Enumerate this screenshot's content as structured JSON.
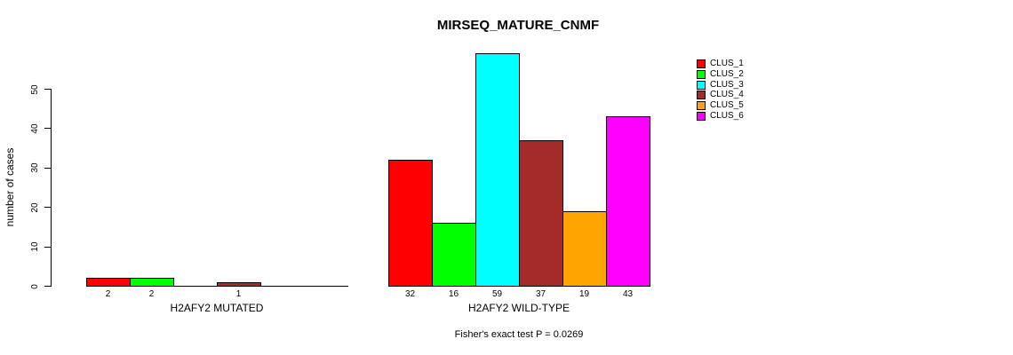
{
  "chart_data": {
    "type": "bar",
    "title": "MIRSEQ_MATURE_CNMF",
    "ylabel": "number of cases",
    "yticks": [
      0,
      10,
      20,
      30,
      40,
      50
    ],
    "ylim": [
      0,
      59
    ],
    "grid": false,
    "legend_position": "top-right",
    "clusters": [
      {
        "name": "CLUS_1",
        "color": "#FF0000"
      },
      {
        "name": "CLUS_2",
        "color": "#00FF00"
      },
      {
        "name": "CLUS_3",
        "color": "#00FFFF"
      },
      {
        "name": "CLUS_4",
        "color": "#A52A2A"
      },
      {
        "name": "CLUS_5",
        "color": "#FFA500"
      },
      {
        "name": "CLUS_6",
        "color": "#FF00FF"
      }
    ],
    "groups": [
      {
        "label": "H2AFY2 MUTATED",
        "values": [
          2,
          2,
          0,
          1,
          0,
          0
        ]
      },
      {
        "label": "H2AFY2 WILD-TYPE",
        "values": [
          32,
          16,
          59,
          37,
          19,
          43
        ]
      }
    ],
    "footer": "Fisher's exact test P = 0.0269"
  }
}
